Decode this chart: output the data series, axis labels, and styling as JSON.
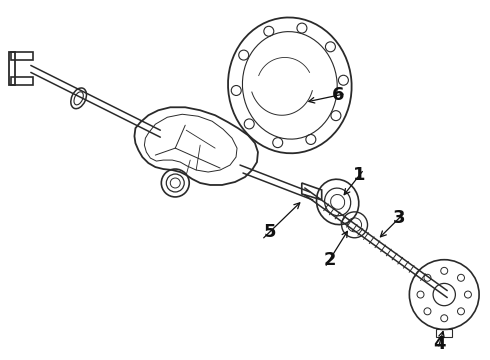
{
  "background_color": "#ffffff",
  "figsize": [
    4.9,
    3.6
  ],
  "dpi": 100,
  "image_data": "target_embed"
}
